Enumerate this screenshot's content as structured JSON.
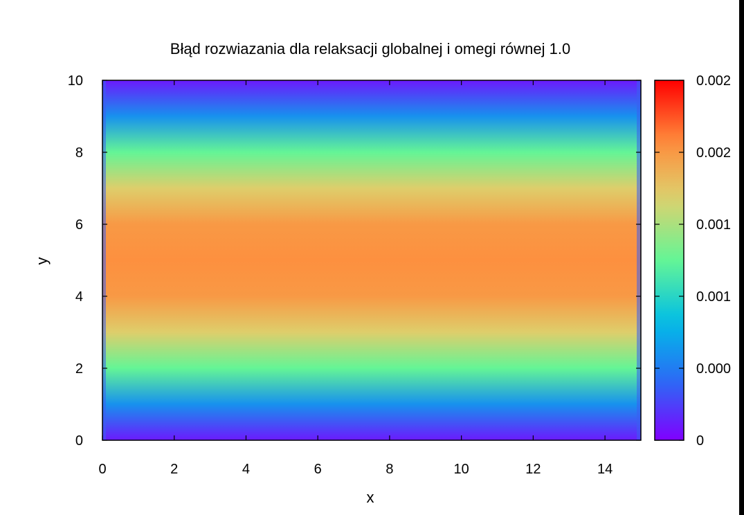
{
  "chart_data": {
    "type": "heatmap",
    "title": "Błąd rozwiazania dla relaksacji globalnej i omegi równej 1.0",
    "xlabel": "x",
    "ylabel": "y",
    "xlim": [
      0,
      15
    ],
    "ylim": [
      0,
      10
    ],
    "x_ticks": [
      "0",
      "2",
      "4",
      "6",
      "8",
      "10",
      "12",
      "14"
    ],
    "y_ticks": [
      "0",
      "2",
      "4",
      "6",
      "8",
      "10"
    ],
    "colorbar": {
      "range": [
        0,
        0.0025
      ],
      "tick_labels": [
        "0",
        "0.000",
        "0.001",
        "0.001",
        "0.002",
        "0.002"
      ],
      "colormap": "rainbow"
    },
    "grid": false,
    "profile_y": [
      0,
      1,
      2,
      3,
      4,
      5,
      6,
      7,
      8,
      9,
      10
    ],
    "profile_value": [
      0.0001,
      0.0006,
      0.00125,
      0.0017,
      0.002,
      0.00205,
      0.002,
      0.0017,
      0.00125,
      0.0006,
      0.0001
    ]
  }
}
